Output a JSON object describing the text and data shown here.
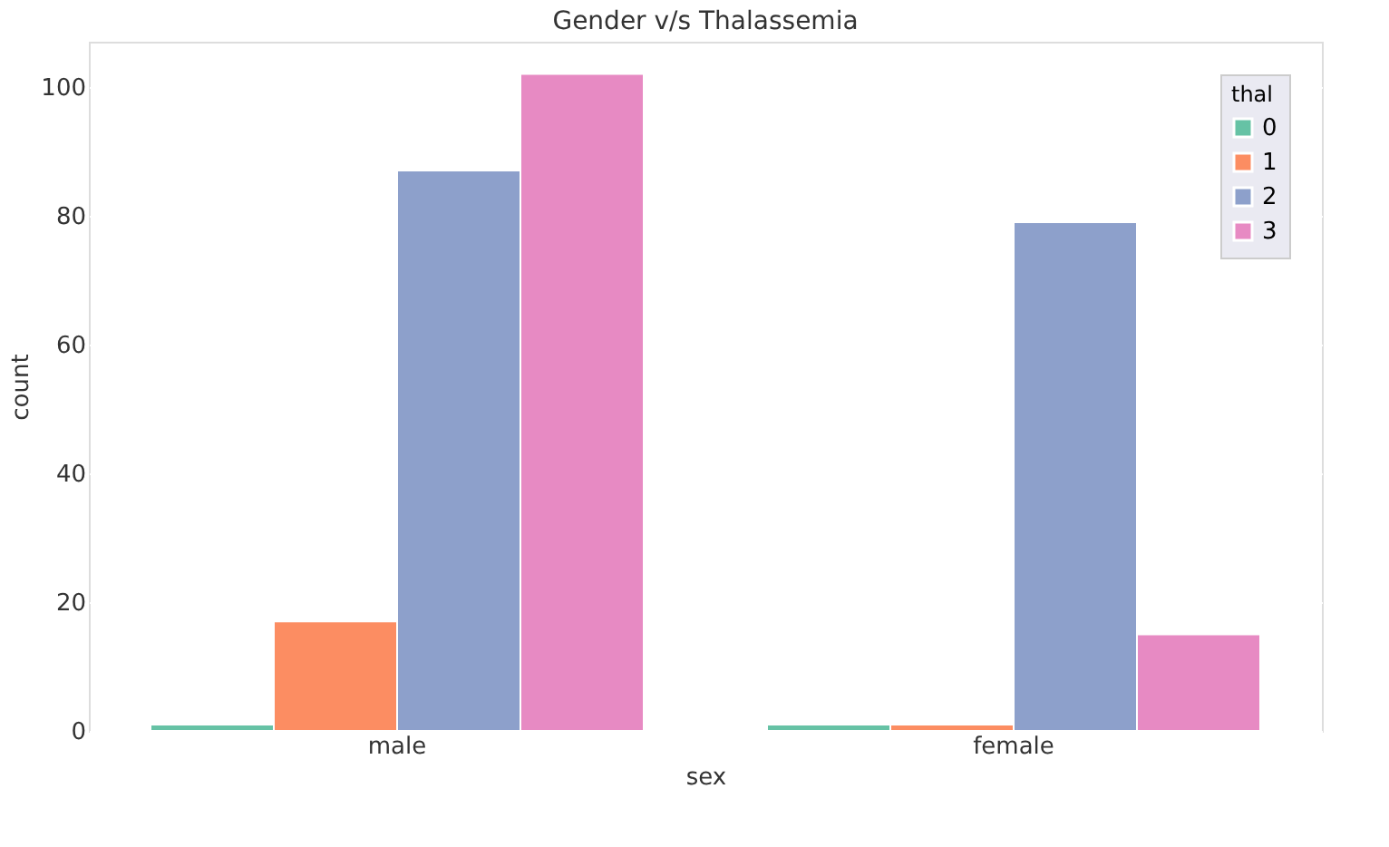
{
  "chart_data": {
    "type": "bar",
    "title": "Gender v/s Thalassemia",
    "xlabel": "sex",
    "ylabel": "count",
    "legend_title": "thal",
    "categories": [
      "male",
      "female"
    ],
    "series": [
      {
        "name": "0",
        "color": "#66c2a5",
        "values": [
          1,
          1
        ]
      },
      {
        "name": "1",
        "color": "#fc8d62",
        "values": [
          17,
          1
        ]
      },
      {
        "name": "2",
        "color": "#8da0cb",
        "values": [
          87,
          79
        ]
      },
      {
        "name": "3",
        "color": "#e78ac3",
        "values": [
          102,
          15
        ]
      }
    ],
    "ylim": [
      0,
      107
    ],
    "yticks": [
      0,
      20,
      40,
      60,
      80,
      100
    ],
    "grid": "y",
    "legend": "top right"
  }
}
